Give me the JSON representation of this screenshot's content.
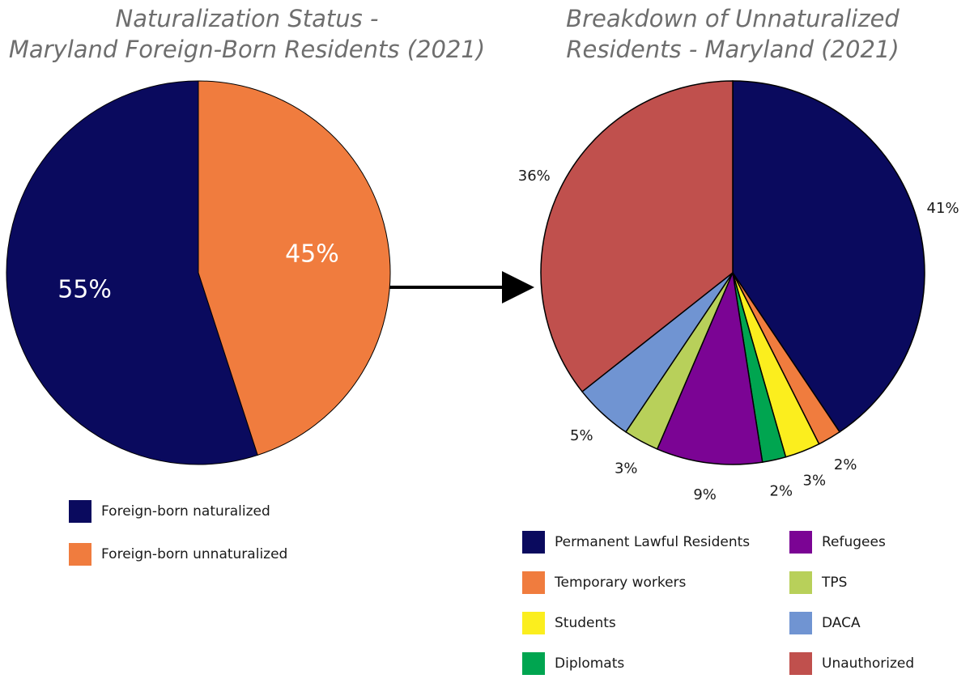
{
  "chart_data": [
    {
      "type": "pie",
      "title": [
        "Naturalization Status -",
        "Maryland Foreign-Born Residents (2021)"
      ],
      "categories": [
        "Foreign-born naturalized",
        "Foreign-born unnaturalized"
      ],
      "values": [
        55,
        45
      ],
      "value_labels": [
        "55%",
        "45%"
      ],
      "colors": [
        "#0a0a5e",
        "#f07c3e"
      ],
      "direction": "counterclockwise",
      "label_position": "inside"
    },
    {
      "type": "pie",
      "title": [
        "Breakdown of Unnaturalized",
        "Residents - Maryland (2021)"
      ],
      "categories": [
        "Permanent Lawful Residents",
        "Temporary workers",
        "Students",
        "Diplomats",
        "Refugees",
        "TPS",
        "DACA",
        "Unauthorized"
      ],
      "values": [
        41,
        2,
        3,
        2,
        9,
        3,
        5,
        36
      ],
      "value_labels": [
        "41%",
        "2%",
        "3%",
        "2%",
        "9%",
        "3%",
        "5%",
        "36%"
      ],
      "colors": [
        "#0a0a5e",
        "#f07c3e",
        "#fbee1e",
        "#00a550",
        "#7b0494",
        "#b8d05a",
        "#7094d2",
        "#c0504d"
      ],
      "direction": "clockwise",
      "label_position": "outside"
    }
  ]
}
